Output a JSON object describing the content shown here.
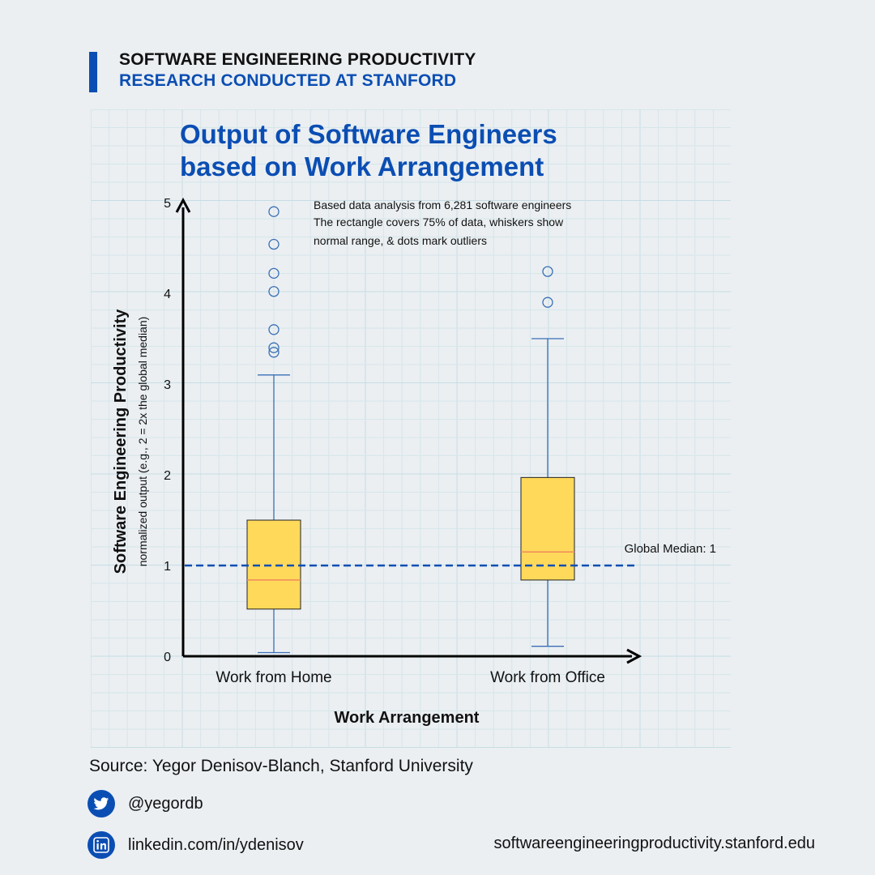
{
  "header": {
    "title": "SOFTWARE ENGINEERING PRODUCTIVITY",
    "subtitle": "RESEARCH CONDUCTED AT STANFORD"
  },
  "footer": {
    "source": "Source: Yegor Denisov-Blanch, Stanford University",
    "twitter_handle": "@yegordb",
    "linkedin_url": "linkedin.com/in/ydenisov",
    "website": "softwareengineeringproductivity.stanford.edu",
    "twitter_icon": "twitter-bird-icon",
    "linkedin_icon": "linkedin-icon"
  },
  "colors": {
    "accent": "#0b4eb3",
    "box_fill": "#ffd95a",
    "median_line": "#f08a5d",
    "whisker": "#3a6fb5",
    "global_median_line": "#0b4eb3"
  },
  "chart_data": {
    "type": "box",
    "title": "Output of Software Engineers based on Work Arrangement",
    "xlabel": "Work Arrangement",
    "ylabel": "Software Engineering Productivity",
    "ylabel_sub": "normalized output (e.g., 2 = 2x the global median)",
    "ylim": [
      0,
      5
    ],
    "yticks": [
      0,
      1,
      2,
      3,
      4,
      5
    ],
    "grid": true,
    "annotation": [
      "Based data analysis from 6,281 software engineers",
      "The rectangle covers 75% of data, whiskers show",
      "normal range, & dots mark outliers"
    ],
    "reference_line": {
      "label": "Global Median: 1",
      "value": 1
    },
    "categories": [
      "Work from Home",
      "Work from Office"
    ],
    "boxes": [
      {
        "category": "Work from Home",
        "whisker_low": 0.04,
        "q1": 0.52,
        "median": 0.84,
        "q3": 1.5,
        "whisker_high": 3.1,
        "outliers": [
          3.35,
          3.4,
          3.6,
          4.02,
          4.22,
          4.54,
          4.9
        ]
      },
      {
        "category": "Work from Office",
        "whisker_low": 0.11,
        "q1": 0.84,
        "median": 1.15,
        "q3": 1.97,
        "whisker_high": 3.5,
        "outliers": [
          3.9,
          4.24
        ]
      }
    ]
  }
}
